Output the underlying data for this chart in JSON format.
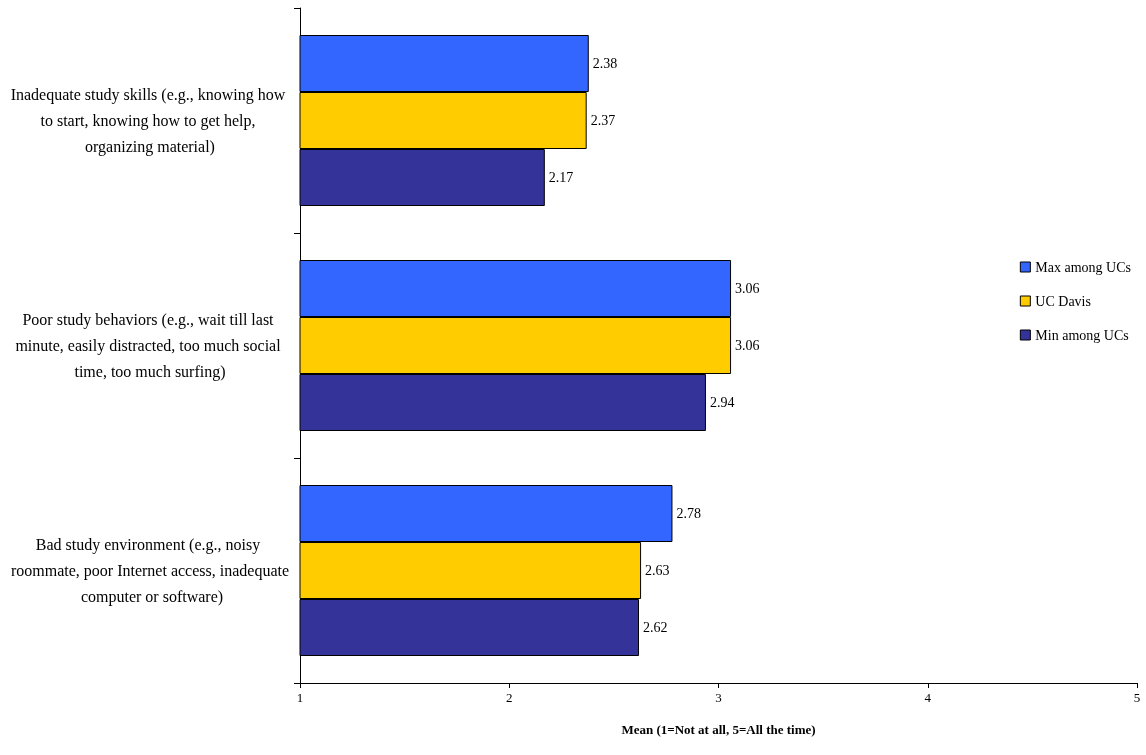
{
  "chart_data": {
    "type": "bar",
    "orientation": "horizontal",
    "categories": [
      "Inadequate study skills (e.g., knowing how to start, knowing how to get help, organizing material)",
      "Poor study behaviors (e.g., wait till last minute, easily distracted, too much social time, too much surfing)",
      "Bad study environment (e.g., noisy roommate, poor Internet access, inadequate computer or software)"
    ],
    "series": [
      {
        "name": "Max among UCs",
        "color": "#3366ff",
        "values": [
          2.38,
          3.06,
          2.78
        ]
      },
      {
        "name": "UC Davis",
        "color": "#ffcc00",
        "values": [
          2.37,
          3.06,
          2.63
        ]
      },
      {
        "name": "Min among UCs",
        "color": "#333399",
        "values": [
          2.17,
          2.94,
          2.62
        ]
      }
    ],
    "xlabel": "Mean (1=Not at all, 5=All the time)",
    "xlim": [
      1,
      5
    ],
    "xticks": [
      1,
      2,
      3,
      4,
      5
    ],
    "data_labels": true,
    "grid": false,
    "legend": "right"
  }
}
